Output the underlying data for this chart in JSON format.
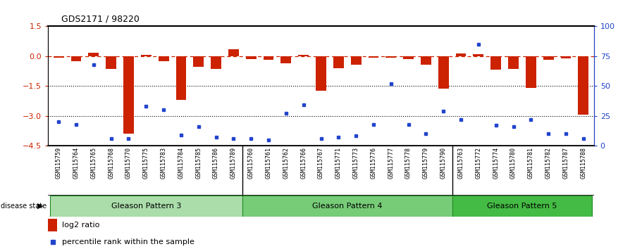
{
  "title": "GDS2171 / 98220",
  "samples": [
    "GSM115759",
    "GSM115764",
    "GSM115765",
    "GSM115768",
    "GSM115770",
    "GSM115775",
    "GSM115783",
    "GSM115784",
    "GSM115785",
    "GSM115786",
    "GSM115789",
    "GSM115760",
    "GSM115761",
    "GSM115762",
    "GSM115766",
    "GSM115767",
    "GSM115771",
    "GSM115773",
    "GSM115776",
    "GSM115777",
    "GSM115778",
    "GSM115779",
    "GSM115790",
    "GSM115763",
    "GSM115772",
    "GSM115774",
    "GSM115780",
    "GSM115781",
    "GSM115782",
    "GSM115787",
    "GSM115788"
  ],
  "log2_ratio": [
    -0.08,
    -0.25,
    0.15,
    -0.65,
    -3.9,
    0.05,
    -0.25,
    -2.2,
    -0.55,
    -0.65,
    0.35,
    -0.15,
    -0.2,
    -0.35,
    0.05,
    -1.75,
    -0.6,
    -0.45,
    -0.08,
    -0.08,
    -0.15,
    -0.45,
    -1.65,
    0.12,
    0.08,
    -0.7,
    -0.65,
    -1.6,
    -0.2,
    -0.12,
    -2.95
  ],
  "percentile": [
    20,
    18,
    68,
    6,
    6,
    33,
    30,
    9,
    16,
    7,
    6,
    6,
    5,
    27,
    34,
    6,
    7,
    8,
    18,
    52,
    18,
    10,
    29,
    22,
    85,
    17,
    16,
    22,
    10,
    10,
    6
  ],
  "groups": [
    {
      "name": "Gleason Pattern 3",
      "start": 0,
      "end": 11,
      "color": "#AADDAA"
    },
    {
      "name": "Gleason Pattern 4",
      "start": 11,
      "end": 23,
      "color": "#77CC77"
    },
    {
      "name": "Gleason Pattern 5",
      "start": 23,
      "end": 31,
      "color": "#44BB44"
    }
  ],
  "bar_color": "#CC2200",
  "dot_color": "#2244CC",
  "ylim_left": [
    -4.5,
    1.5
  ],
  "ylim_right": [
    0,
    100
  ],
  "yticks_left": [
    1.5,
    0.0,
    -1.5,
    -3.0,
    -4.5
  ],
  "yticks_right": [
    100,
    75,
    50,
    25,
    0
  ],
  "dotted_lines": [
    -1.5,
    -3.0
  ],
  "background_color": "#ffffff",
  "xtick_bg_color": "#CCCCCC",
  "group_border_color": "#228822"
}
